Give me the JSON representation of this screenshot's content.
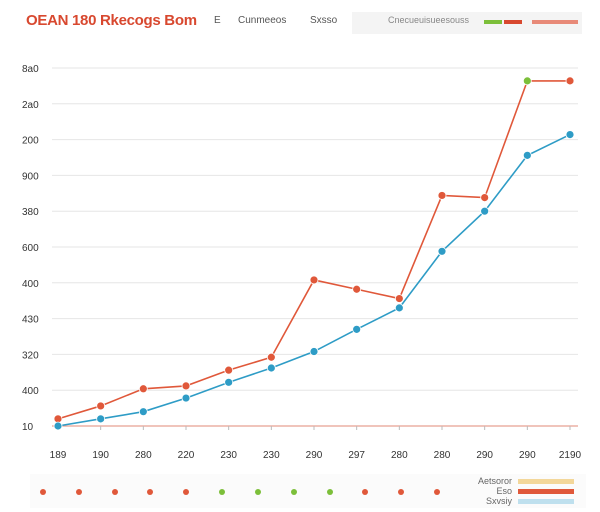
{
  "header": {
    "title": "OEAN 180 Rkecogs Bom",
    "tab_a": "E",
    "tab_b": "Cunmeeos",
    "tab_c": "Sxsso",
    "box_label": "Cnecueuisueesouss"
  },
  "colors": {
    "series_orange": "#e0583a",
    "series_blue": "#2e9cc6",
    "accent_green": "#7cbf3a",
    "grid": "#e6e6e6",
    "baseline": "#e8a092"
  },
  "legend": {
    "item1": "Aetsoror",
    "item2": "Eso",
    "item3": "Sxvsiy"
  },
  "chart_data": {
    "type": "line",
    "title": "OEAN 180 Rkecogs Bom",
    "x": [
      "189",
      "190",
      "280",
      "220",
      "230",
      "230",
      "290",
      "297",
      "280",
      "280",
      "290",
      "290",
      "2190"
    ],
    "y_ticks": [
      "10",
      "400",
      "320",
      "430",
      "400",
      "600",
      "380",
      "900",
      "200",
      "2a0",
      "8a0"
    ],
    "ylim": [
      0,
      500
    ],
    "grid": true,
    "legend_position": "bottom-right",
    "series": [
      {
        "color": "#e0583a",
        "values": [
          10,
          28,
          52,
          56,
          78,
          96,
          204,
          191,
          178,
          322,
          319,
          482,
          482
        ]
      },
      {
        "color": "#2e9cc6",
        "values": [
          0,
          10,
          20,
          39,
          61,
          81,
          104,
          135,
          165,
          244,
          300,
          378,
          407
        ]
      }
    ],
    "highlight": {
      "series": 0,
      "index": 11,
      "color": "#7cbf3a"
    }
  }
}
